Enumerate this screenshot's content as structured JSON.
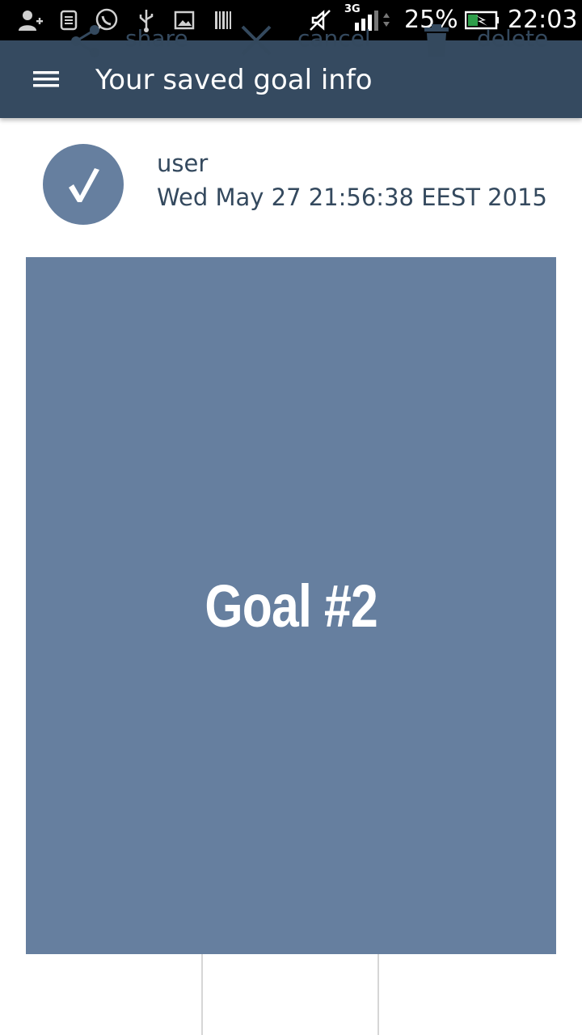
{
  "status_bar": {
    "battery": "25%",
    "time": "22:03",
    "network": "3G",
    "icons": [
      "add-contact-icon",
      "notes-icon",
      "whatsapp-icon",
      "usb-icon",
      "image-icon",
      "barcode-icon",
      "mute-icon",
      "signal-icon",
      "battery-icon"
    ]
  },
  "app_bar": {
    "title": "Your saved goal info",
    "menu_icon": "hamburger-menu-icon"
  },
  "header": {
    "avatar_glyph": "√",
    "user": "user",
    "date": "Wed May 27 21:56:38 EEST 2015"
  },
  "goal": {
    "title": "Goal #2"
  },
  "actions": {
    "share": "share",
    "cancel": "cancel",
    "delete": "delete"
  },
  "colors": {
    "app_bar": "#354a60",
    "accent": "#667f9f",
    "text": "#34495e"
  }
}
